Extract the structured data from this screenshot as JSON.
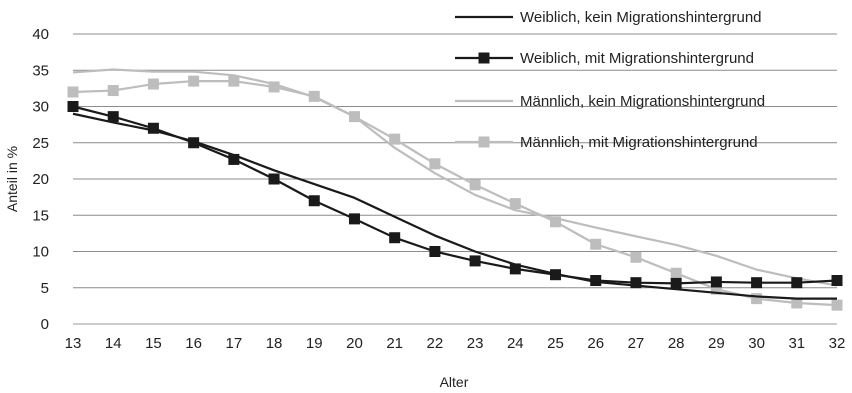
{
  "chart_data": {
    "type": "line",
    "xlabel": "Alter",
    "ylabel": "Anteil in %",
    "x": [
      13,
      14,
      15,
      16,
      17,
      18,
      19,
      20,
      21,
      22,
      23,
      24,
      25,
      26,
      27,
      28,
      29,
      30,
      31,
      32
    ],
    "ylim": [
      0,
      40
    ],
    "yticks": [
      0,
      5,
      10,
      15,
      20,
      25,
      30,
      35,
      40
    ],
    "grid": "horizontal",
    "legend_position": "top-right",
    "series": [
      {
        "name": "Weiblich, kein Migrationshintergrund",
        "color": "#1a1a1a",
        "marker": "none",
        "values": [
          29.0,
          27.8,
          26.7,
          25.2,
          23.3,
          21.2,
          19.3,
          17.4,
          14.8,
          12.2,
          10.0,
          8.2,
          6.9,
          5.8,
          5.3,
          4.8,
          4.3,
          3.8,
          3.5,
          3.5
        ]
      },
      {
        "name": "Weiblich, mit Migrationshintergrund",
        "color": "#1a1a1a",
        "marker": "square",
        "values": [
          30.0,
          28.6,
          27.0,
          25.0,
          22.7,
          20.0,
          17.0,
          14.5,
          11.9,
          10.0,
          8.7,
          7.6,
          6.8,
          6.0,
          5.7,
          5.6,
          5.8,
          5.7,
          5.7,
          6.0
        ]
      },
      {
        "name": "Männlich, kein Migrationshintergrund",
        "color": "#bdbdbd",
        "marker": "none",
        "values": [
          34.7,
          35.1,
          34.8,
          34.8,
          34.3,
          33.1,
          31.3,
          28.6,
          24.3,
          20.8,
          17.8,
          15.7,
          14.6,
          13.3,
          12.1,
          10.9,
          9.4,
          7.5,
          6.3,
          5.3
        ]
      },
      {
        "name": "Männlich, mit Migrationshintergrund",
        "color": "#bdbdbd",
        "marker": "square",
        "values": [
          32.0,
          32.2,
          33.1,
          33.5,
          33.5,
          32.7,
          31.4,
          28.6,
          25.5,
          22.1,
          19.2,
          16.6,
          14.1,
          11.0,
          9.2,
          7.0,
          4.8,
          3.5,
          2.9,
          2.6
        ]
      }
    ]
  }
}
